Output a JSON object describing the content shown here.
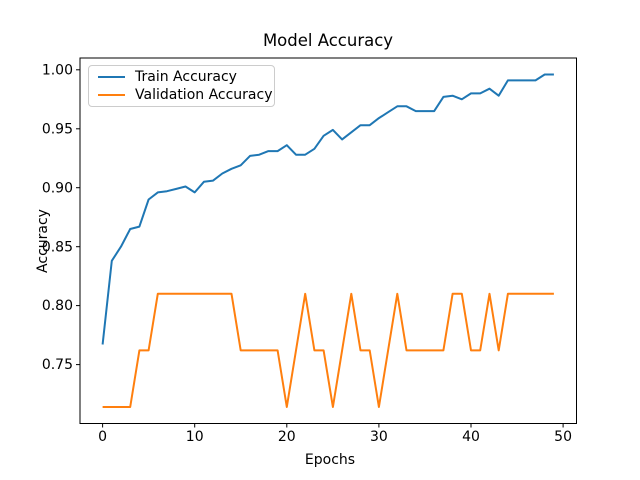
{
  "title": "Model Accuracy",
  "axes": {
    "xlabel": "Epochs",
    "ylabel": "Accuracy",
    "x_tick_labels": [
      "0",
      "10",
      "20",
      "30",
      "40",
      "50"
    ],
    "y_tick_labels": [
      "0.75",
      "0.80",
      "0.85",
      "0.90",
      "0.95",
      "1.00"
    ]
  },
  "legend": {
    "position": "upper left",
    "entries": [
      {
        "label": "Train Accuracy",
        "color": "#1f77b4"
      },
      {
        "label": "Validation Accuracy",
        "color": "#ff7f0e"
      }
    ]
  },
  "chart_data": {
    "type": "line",
    "title": "Model Accuracy",
    "xlabel": "Epochs",
    "ylabel": "Accuracy",
    "grid": false,
    "legend_position": "upper left",
    "xlim": [
      -2.45,
      51.45
    ],
    "ylim": [
      0.7,
      1.01
    ],
    "x_ticks": [
      0,
      10,
      20,
      30,
      40,
      50
    ],
    "y_ticks": [
      0.75,
      0.8,
      0.85,
      0.9,
      0.95,
      1.0
    ],
    "x": [
      0,
      1,
      2,
      3,
      4,
      5,
      6,
      7,
      8,
      9,
      10,
      11,
      12,
      13,
      14,
      15,
      16,
      17,
      18,
      19,
      20,
      21,
      22,
      23,
      24,
      25,
      26,
      27,
      28,
      29,
      30,
      31,
      32,
      33,
      34,
      35,
      36,
      37,
      38,
      39,
      40,
      41,
      42,
      43,
      44,
      45,
      46,
      47,
      48,
      49
    ],
    "series": [
      {
        "name": "Train Accuracy",
        "color": "#1f77b4",
        "values": [
          0.767,
          0.838,
          0.85,
          0.865,
          0.867,
          0.89,
          0.896,
          0.897,
          0.899,
          0.901,
          0.896,
          0.905,
          0.906,
          0.912,
          0.916,
          0.919,
          0.927,
          0.928,
          0.931,
          0.931,
          0.936,
          0.928,
          0.928,
          0.933,
          0.944,
          0.949,
          0.941,
          0.947,
          0.953,
          0.953,
          0.959,
          0.964,
          0.969,
          0.969,
          0.965,
          0.965,
          0.965,
          0.977,
          0.978,
          0.975,
          0.98,
          0.98,
          0.984,
          0.978,
          0.991,
          0.991,
          0.991,
          0.991,
          0.996,
          0.996
        ]
      },
      {
        "name": "Validation Accuracy",
        "color": "#ff7f0e",
        "values": [
          0.714,
          0.714,
          0.714,
          0.714,
          0.762,
          0.762,
          0.81,
          0.81,
          0.81,
          0.81,
          0.81,
          0.81,
          0.81,
          0.81,
          0.81,
          0.762,
          0.762,
          0.762,
          0.762,
          0.762,
          0.714,
          0.762,
          0.81,
          0.762,
          0.762,
          0.714,
          0.762,
          0.81,
          0.762,
          0.762,
          0.714,
          0.762,
          0.81,
          0.762,
          0.762,
          0.762,
          0.762,
          0.762,
          0.81,
          0.81,
          0.762,
          0.762,
          0.81,
          0.762,
          0.81,
          0.81,
          0.81,
          0.81,
          0.81,
          0.81
        ]
      }
    ]
  }
}
